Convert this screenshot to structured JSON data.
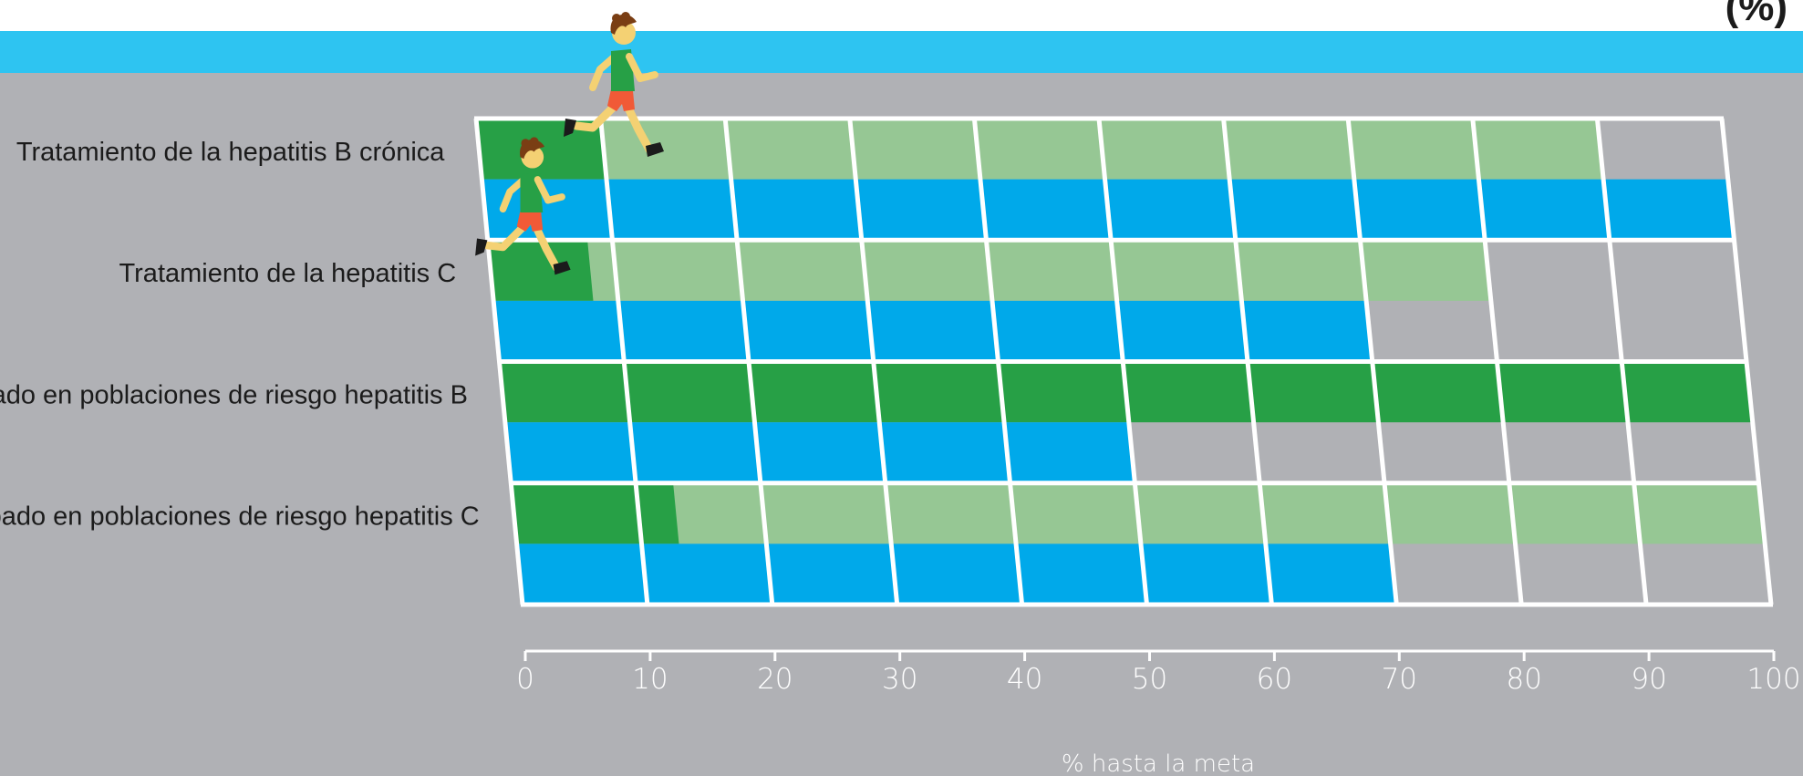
{
  "title_fragment": "(%)",
  "colors": {
    "background": "#b0b1b5",
    "top_band": "#2ec4f1",
    "current_dark_green": "#27a046",
    "target_light_green": "#96c794",
    "blue_bar": "#00a9ea",
    "grid": "#ffffff",
    "figure_hair": "#7a3e14",
    "figure_skin": "#f4d173",
    "figure_shirt": "#27a046",
    "figure_shorts": "#f15a37"
  },
  "chart_data": {
    "type": "bar",
    "orientation": "horizontal",
    "title": "",
    "xlabel": "% hasta la meta",
    "ylabel": "",
    "xlim": [
      0,
      100
    ],
    "xticks": [
      "0",
      "10",
      "20",
      "30",
      "40",
      "50",
      "60",
      "70",
      "80",
      "90",
      "100"
    ],
    "grid": true,
    "categories": [
      "Tratamiento de la hepatitis B crónica",
      "Tratamiento de la hepatitis C",
      "Cribado en poblaciones de riesgo hepatitis B",
      "Cribado en poblaciones de riesgo hepatitis C"
    ],
    "series": [
      {
        "role": "upper_dark_green",
        "values": [
          10,
          8,
          100,
          13
        ]
      },
      {
        "role": "upper_light_green",
        "values": [
          90,
          80,
          0,
          100
        ]
      },
      {
        "role": "lower_blue",
        "values": [
          100,
          70,
          50,
          70
        ]
      }
    ],
    "runner_icons": [
      "runner-icon",
      "runner-icon"
    ]
  }
}
